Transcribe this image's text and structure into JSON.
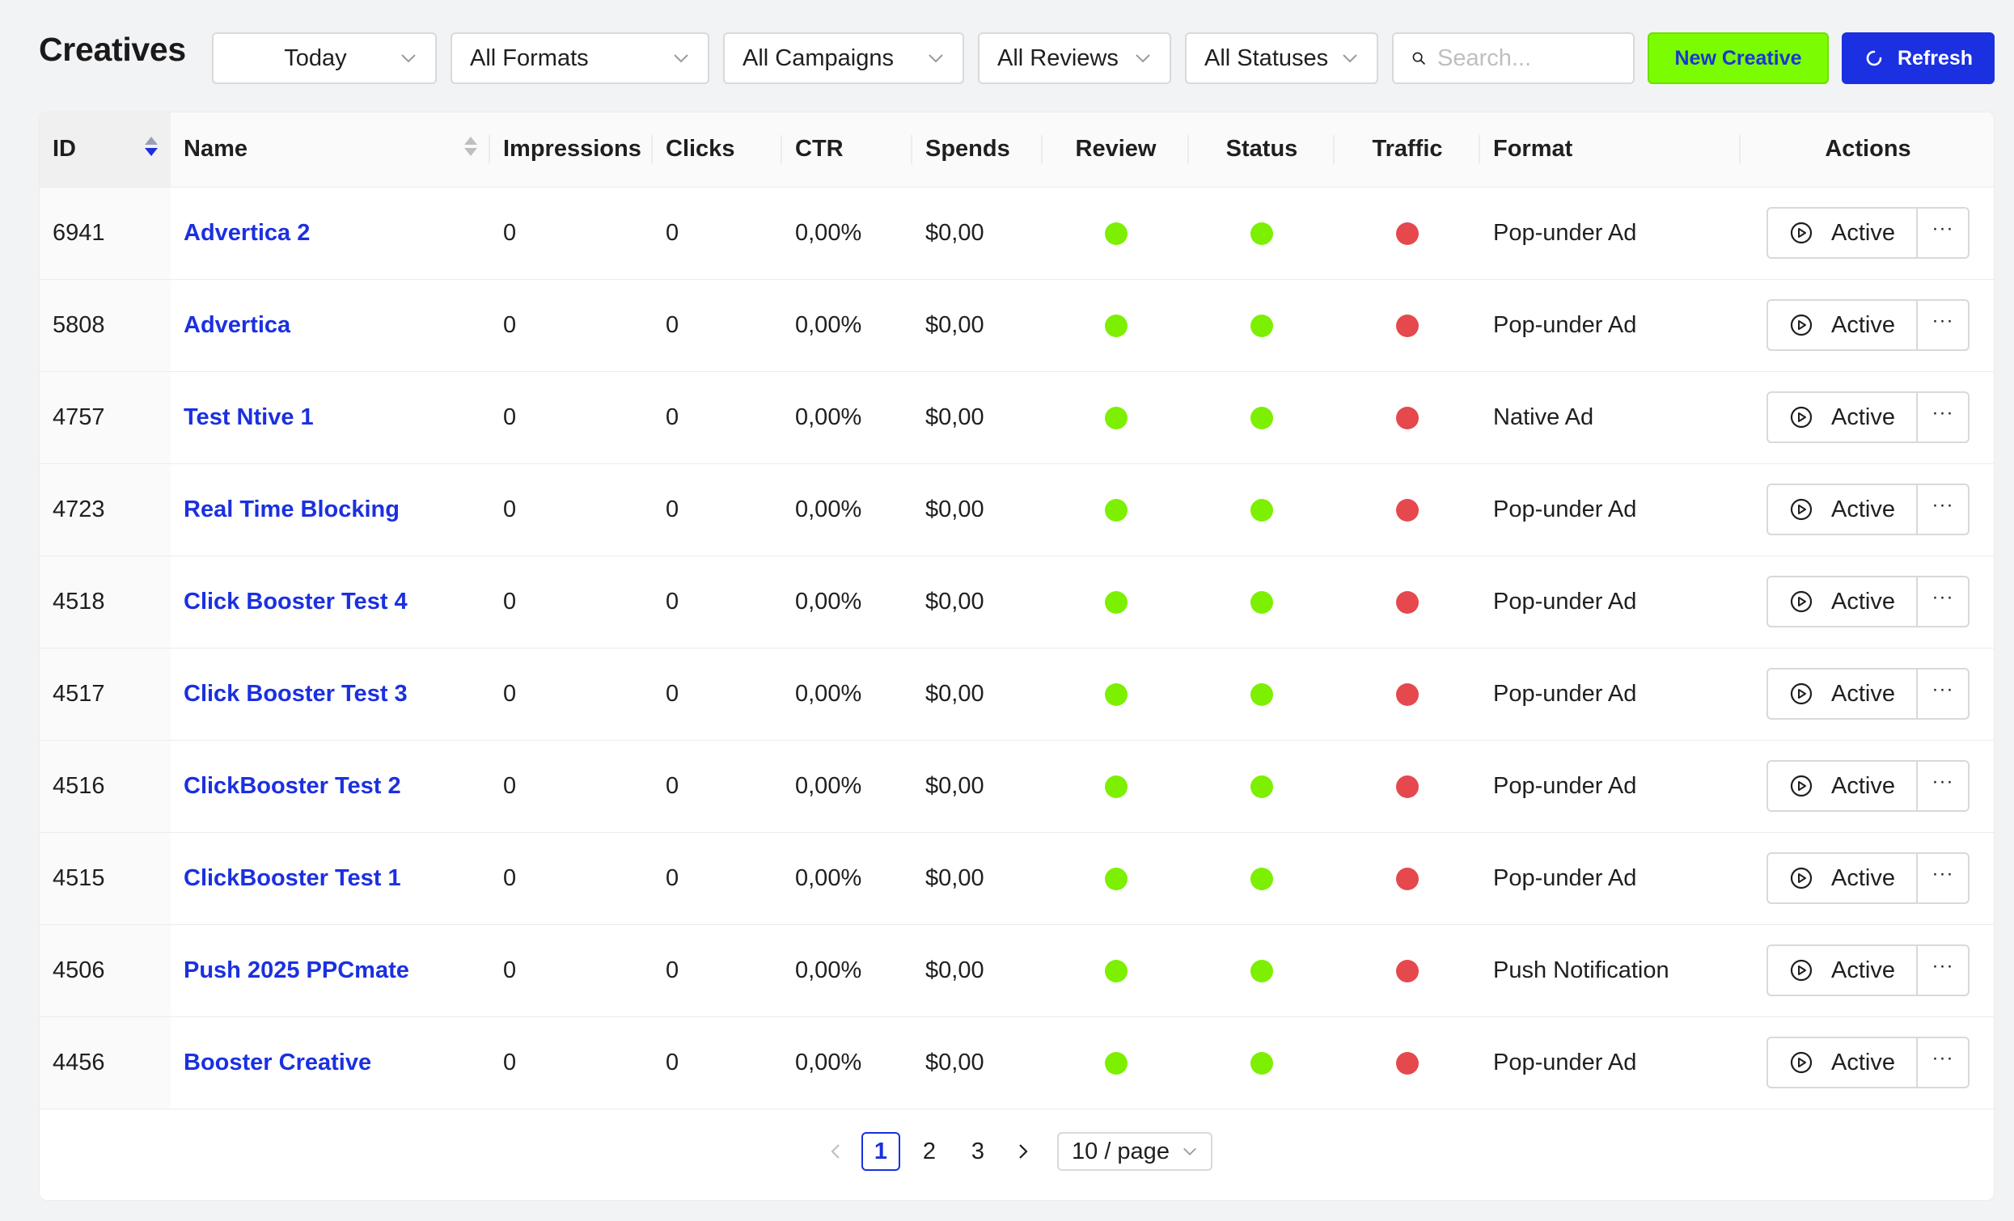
{
  "page": {
    "title": "Creatives"
  },
  "filters": {
    "date": "Today",
    "formats": "All Formats",
    "campaigns": "All Campaigns",
    "reviews": "All Reviews",
    "statuses": "All Statuses",
    "search_placeholder": "Search..."
  },
  "toolbar": {
    "new_label": "New Creative",
    "refresh_label": "Refresh"
  },
  "colors": {
    "accent_blue": "#1b30e0",
    "accent_green": "#7cfc00",
    "status_green": "#7cf000",
    "status_red": "#e5484d"
  },
  "table": {
    "headers": {
      "id": "ID",
      "name": "Name",
      "impressions": "Impressions",
      "clicks": "Clicks",
      "ctr": "CTR",
      "spends": "Spends",
      "review": "Review",
      "status": "Status",
      "traffic": "Traffic",
      "format": "Format",
      "actions": "Actions"
    },
    "rows": [
      {
        "id": "6941",
        "name": "Advertica 2",
        "impressions": "0",
        "clicks": "0",
        "ctr": "0,00%",
        "spends": "$0,00",
        "review": "green",
        "status": "green",
        "traffic": "red",
        "format": "Pop-under Ad",
        "action": "Active"
      },
      {
        "id": "5808",
        "name": "Advertica",
        "impressions": "0",
        "clicks": "0",
        "ctr": "0,00%",
        "spends": "$0,00",
        "review": "green",
        "status": "green",
        "traffic": "red",
        "format": "Pop-under Ad",
        "action": "Active"
      },
      {
        "id": "4757",
        "name": "Test Ntive 1",
        "impressions": "0",
        "clicks": "0",
        "ctr": "0,00%",
        "spends": "$0,00",
        "review": "green",
        "status": "green",
        "traffic": "red",
        "format": "Native Ad",
        "action": "Active"
      },
      {
        "id": "4723",
        "name": "Real Time Blocking",
        "impressions": "0",
        "clicks": "0",
        "ctr": "0,00%",
        "spends": "$0,00",
        "review": "green",
        "status": "green",
        "traffic": "red",
        "format": "Pop-under Ad",
        "action": "Active"
      },
      {
        "id": "4518",
        "name": "Click Booster Test 4",
        "impressions": "0",
        "clicks": "0",
        "ctr": "0,00%",
        "spends": "$0,00",
        "review": "green",
        "status": "green",
        "traffic": "red",
        "format": "Pop-under Ad",
        "action": "Active"
      },
      {
        "id": "4517",
        "name": "Click Booster Test 3",
        "impressions": "0",
        "clicks": "0",
        "ctr": "0,00%",
        "spends": "$0,00",
        "review": "green",
        "status": "green",
        "traffic": "red",
        "format": "Pop-under Ad",
        "action": "Active"
      },
      {
        "id": "4516",
        "name": "ClickBooster Test 2",
        "impressions": "0",
        "clicks": "0",
        "ctr": "0,00%",
        "spends": "$0,00",
        "review": "green",
        "status": "green",
        "traffic": "red",
        "format": "Pop-under Ad",
        "action": "Active"
      },
      {
        "id": "4515",
        "name": "ClickBooster Test 1",
        "impressions": "0",
        "clicks": "0",
        "ctr": "0,00%",
        "spends": "$0,00",
        "review": "green",
        "status": "green",
        "traffic": "red",
        "format": "Pop-under Ad",
        "action": "Active"
      },
      {
        "id": "4506",
        "name": "Push 2025 PPCmate",
        "impressions": "0",
        "clicks": "0",
        "ctr": "0,00%",
        "spends": "$0,00",
        "review": "green",
        "status": "green",
        "traffic": "red",
        "format": "Push Notification",
        "action": "Active"
      },
      {
        "id": "4456",
        "name": "Booster Creative",
        "impressions": "0",
        "clicks": "0",
        "ctr": "0,00%",
        "spends": "$0,00",
        "review": "green",
        "status": "green",
        "traffic": "red",
        "format": "Pop-under Ad",
        "action": "Active"
      }
    ]
  },
  "pagination": {
    "pages": [
      "1",
      "2",
      "3"
    ],
    "current": "1",
    "page_size": "10 / page"
  }
}
